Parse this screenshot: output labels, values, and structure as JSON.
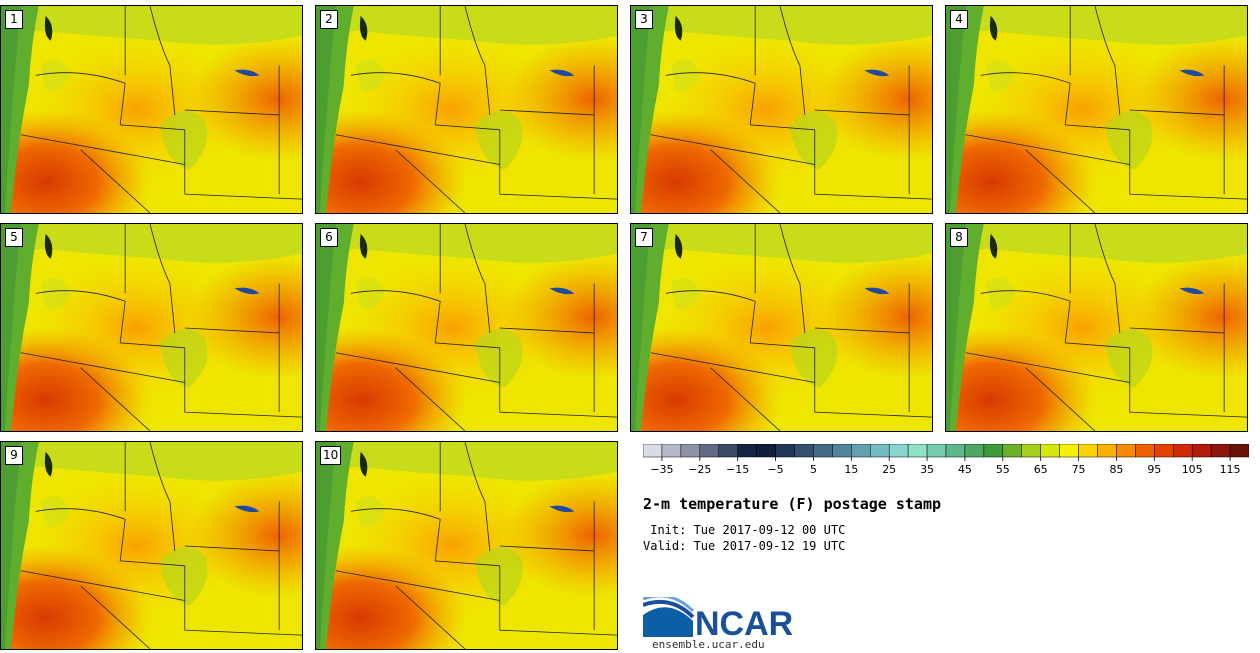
{
  "panels": [
    {
      "label": "1"
    },
    {
      "label": "2"
    },
    {
      "label": "3"
    },
    {
      "label": "4"
    },
    {
      "label": "5"
    },
    {
      "label": "6"
    },
    {
      "label": "7"
    },
    {
      "label": "8"
    },
    {
      "label": "9"
    },
    {
      "label": "10"
    }
  ],
  "colorbar": {
    "tick_labels": [
      "−35",
      "−25",
      "−15",
      "−5",
      "5",
      "15",
      "25",
      "35",
      "45",
      "55",
      "65",
      "75",
      "85",
      "95",
      "105",
      "115"
    ],
    "colors": [
      "#d9dbe6",
      "#b6b9c9",
      "#8d92a6",
      "#636b84",
      "#3c4a66",
      "#142444",
      "#0f1e3b",
      "#213556",
      "#33506f",
      "#426b87",
      "#52849d",
      "#62a0b2",
      "#74bcc3",
      "#88d6cf",
      "#8fe2c6",
      "#75ccb0",
      "#5eb98a",
      "#4ea85f",
      "#3f9a3a",
      "#6cb02a",
      "#a6cf1c",
      "#d8e60f",
      "#f7f300",
      "#fbd400",
      "#f9b000",
      "#f68900",
      "#ef6200",
      "#e54100",
      "#d12a08",
      "#b51b0a",
      "#8e150c",
      "#6a1108"
    ]
  },
  "title": "2-m temperature (F) postage stamp",
  "init": " Init: Tue 2017-09-12 00 UTC",
  "valid": "Valid: Tue 2017-09-12 19 UTC",
  "logo": {
    "text": "NCAR",
    "url": "ensemble.ucar.edu",
    "color": "#1a4f9c"
  }
}
